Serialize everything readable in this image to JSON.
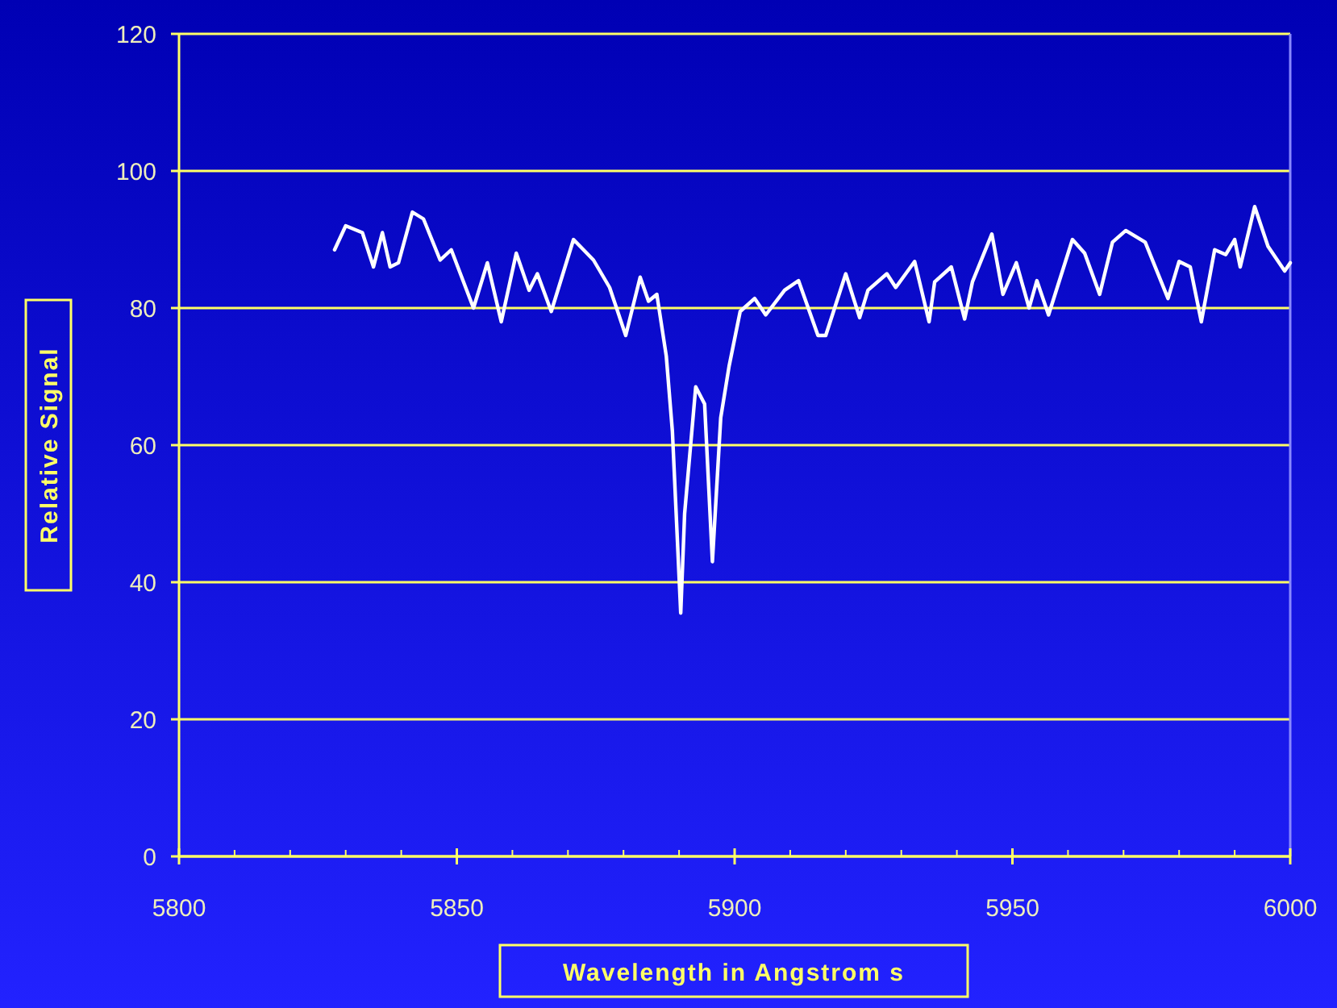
{
  "chart_data": {
    "type": "line",
    "xlabel": "Wavelength in Angstrom s",
    "ylabel": "Relative Signal",
    "xlim": [
      5800,
      6000
    ],
    "xticks": [
      5800,
      5850,
      5900,
      5950,
      6000
    ],
    "ylim": [
      0,
      120
    ],
    "yticks": [
      0,
      20,
      40,
      60,
      80,
      100,
      120
    ],
    "grid": "y",
    "marker": "none",
    "line_style": "solid",
    "series": [
      {
        "color": "#ffffff",
        "x": [
          5828,
          5830,
          5833,
          5835,
          5836.6,
          5838,
          5839.5,
          5842,
          5844,
          5847,
          5849,
          5853,
          5855.5,
          5858,
          5860.7,
          5863,
          5864.5,
          5867,
          5871,
          5874.6,
          5877.5,
          5880.4,
          5883,
          5884.5,
          5886,
          5887.7,
          5888.8,
          5890.3,
          5891,
          5893,
          5894.6,
          5896,
          5897.5,
          5899,
          5901,
          5903.6,
          5905.6,
          5909,
          5911.5,
          5915,
          5916.4,
          5920,
          5922.5,
          5924,
          5927.4,
          5929,
          5932.4,
          5935,
          5936,
          5939,
          5941.4,
          5942.8,
          5946.3,
          5948.3,
          5950.7,
          5953,
          5954.4,
          5956.5,
          5960.8,
          5963,
          5965.7,
          5968,
          5970.4,
          5973.9,
          5978,
          5980,
          5982,
          5984,
          5986.4,
          5988.4,
          5990,
          5991,
          5993.6,
          5996,
          5999,
          6000
        ],
        "values": [
          88.5,
          92,
          91,
          86,
          91,
          86,
          86.6,
          94,
          93,
          87,
          88.5,
          80,
          86.6,
          78,
          88,
          82.6,
          85,
          79.5,
          90,
          87,
          83,
          76,
          84.5,
          81,
          82,
          73,
          62,
          35.5,
          50,
          68.5,
          66,
          43,
          64,
          71.5,
          79.5,
          81.4,
          79,
          82.6,
          84,
          76,
          76,
          85,
          78.6,
          82.6,
          85,
          83,
          86.8,
          78,
          83.8,
          86,
          78.4,
          83.8,
          90.8,
          82,
          86.6,
          80,
          84,
          79,
          90,
          88,
          82,
          89.6,
          91.3,
          89.6,
          81.4,
          86.8,
          86,
          78,
          88.5,
          87.8,
          90,
          86,
          94.8,
          89,
          85.4,
          86.6
        ]
      }
    ]
  }
}
